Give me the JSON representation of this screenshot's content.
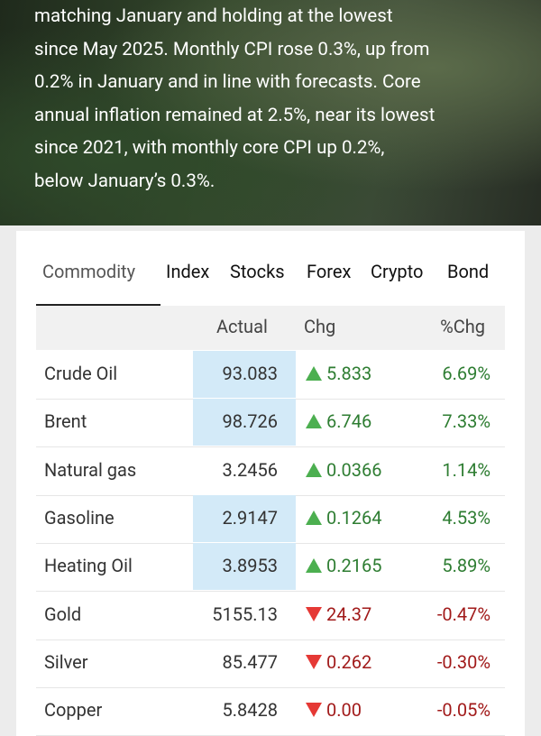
{
  "article": {
    "lines": [
      "matching January and holding at the lowest",
      "since May 2025. Monthly CPI rose 0.3%, up from",
      "0.2% in January and in line with forecasts. Core",
      "annual inflation remained at 2.5%, near its lowest",
      "since 2021, with monthly core CPI up 0.2%,",
      "below January’s 0.3%."
    ]
  },
  "tabs": {
    "items": [
      "Commodity",
      "Index",
      "Stocks",
      "Forex",
      "Crypto",
      "Bond"
    ],
    "active": 0
  },
  "table": {
    "header": [
      "Actual",
      "Chg",
      "%Chg"
    ],
    "rows": [
      {
        "name": "Crude Oil",
        "actual": "93.083",
        "chg": "5.833",
        "pct": "6.69%",
        "highlighted": true
      },
      {
        "name": "Brent",
        "actual": "98.726",
        "chg": "6.746",
        "pct": "7.33%",
        "highlighted": true
      },
      {
        "name": "Natural gas",
        "actual": "3.2456",
        "chg": "0.0366",
        "pct": "1.14%",
        "highlighted": false
      },
      {
        "name": "Gasoline",
        "actual": "2.9147",
        "chg": "0.1264",
        "pct": "4.53%",
        "highlighted": true
      },
      {
        "name": "Heating Oil",
        "actual": "3.8953",
        "chg": "0.2165",
        "pct": "5.89%",
        "highlighted": true
      },
      {
        "name": "Gold",
        "actual": "5155.13",
        "chg": "24.37",
        "pct": "-0.47%",
        "highlighted": false
      },
      {
        "name": "Silver",
        "actual": "85.477",
        "chg": "0.262",
        "pct": "-0.30%",
        "highlighted": false
      },
      {
        "name": "Copper",
        "actual": "5.8428",
        "chg": "0.00",
        "pct": "-0.05%",
        "highlighted": false
      }
    ]
  }
}
